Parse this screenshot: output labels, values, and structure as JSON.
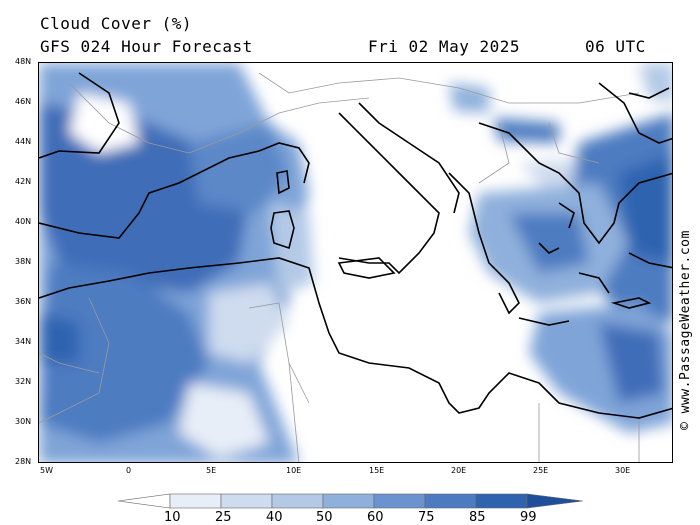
{
  "header": {
    "title": "Cloud Cover (%)",
    "subtitle": "GFS 024 Hour Forecast",
    "date": "Fri 02 May 2025",
    "time": "06 UTC"
  },
  "credit": "© www.PassageWeather.com",
  "lat_labels": [
    "48N",
    "46N",
    "44N",
    "42N",
    "40N",
    "38N",
    "36N",
    "34N",
    "32N",
    "30N",
    "28N"
  ],
  "lon_labels": [
    "5W",
    "0",
    "5E",
    "10E",
    "15E",
    "20E",
    "25E",
    "30E"
  ],
  "legend": {
    "labels": [
      "10",
      "25",
      "40",
      "50",
      "60",
      "75",
      "85",
      "99"
    ],
    "colors": [
      "#ffffff",
      "#e8eef8",
      "#cfdcef",
      "#b3c9e6",
      "#8fb0dc",
      "#6a93cf",
      "#4d7bc1",
      "#2f63b0",
      "#1f4f9a"
    ]
  }
}
